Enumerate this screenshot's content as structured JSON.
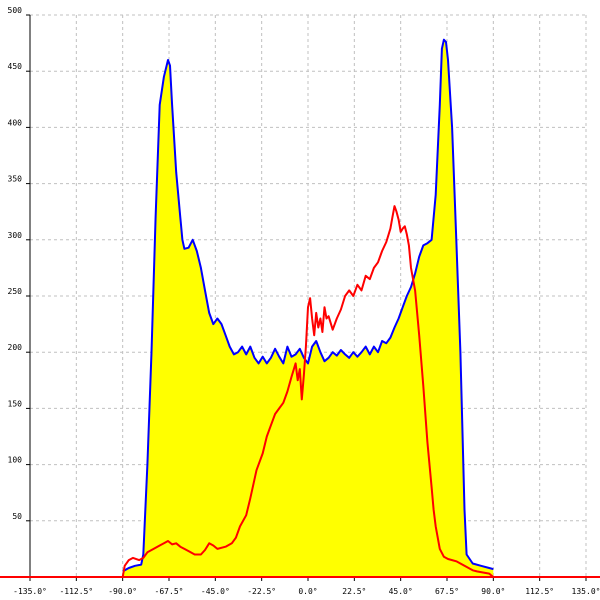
{
  "chart_data": {
    "type": "area",
    "title": "",
    "xlabel": "",
    "ylabel": "",
    "xlim": [
      -135,
      135
    ],
    "ylim": [
      0,
      500
    ],
    "x_ticks": [
      -135,
      -112.5,
      -90,
      -67.5,
      -45,
      -22.5,
      0,
      22.5,
      45,
      67.5,
      90,
      112.5,
      135
    ],
    "x_tick_labels": [
      "-135.0°",
      "-112.5°",
      "-90.0°",
      "-67.5°",
      "-45.0°",
      "-22.5°",
      "0.0°",
      "22.5°",
      "45.0°",
      "67.5°",
      "90.0°",
      "112.5°",
      "135.0°"
    ],
    "y_ticks": [
      50,
      100,
      150,
      200,
      250,
      300,
      350,
      400,
      450,
      500
    ],
    "y_tick_labels": [
      "50",
      "100",
      "150",
      "200",
      "250",
      "300",
      "350",
      "400",
      "450",
      "500"
    ],
    "grid": true,
    "legend": "none",
    "fill_color": "#ffff00",
    "series": [
      {
        "color": "#0000ff",
        "filled": true,
        "points": [
          [
            -90,
            5
          ],
          [
            -87,
            8
          ],
          [
            -84,
            10
          ],
          [
            -81,
            11
          ],
          [
            -80,
            20
          ],
          [
            -78,
            100
          ],
          [
            -76,
            200
          ],
          [
            -74,
            320
          ],
          [
            -72,
            420
          ],
          [
            -70,
            445
          ],
          [
            -68,
            460
          ],
          [
            -67,
            455
          ],
          [
            -66,
            420
          ],
          [
            -64,
            360
          ],
          [
            -62,
            320
          ],
          [
            -61,
            300
          ],
          [
            -60,
            292
          ],
          [
            -58,
            293
          ],
          [
            -56,
            300
          ],
          [
            -54,
            290
          ],
          [
            -52,
            275
          ],
          [
            -50,
            255
          ],
          [
            -48,
            235
          ],
          [
            -46,
            225
          ],
          [
            -44,
            230
          ],
          [
            -42,
            225
          ],
          [
            -40,
            215
          ],
          [
            -38,
            205
          ],
          [
            -36,
            198
          ],
          [
            -34,
            200
          ],
          [
            -32,
            205
          ],
          [
            -30,
            198
          ],
          [
            -28,
            205
          ],
          [
            -26,
            195
          ],
          [
            -24,
            190
          ],
          [
            -22,
            196
          ],
          [
            -20,
            190
          ],
          [
            -18,
            195
          ],
          [
            -16,
            203
          ],
          [
            -14,
            196
          ],
          [
            -12,
            190
          ],
          [
            -10,
            205
          ],
          [
            -8,
            196
          ],
          [
            -6,
            198
          ],
          [
            -4,
            203
          ],
          [
            -2,
            195
          ],
          [
            0,
            190
          ],
          [
            2,
            205
          ],
          [
            4,
            210
          ],
          [
            6,
            200
          ],
          [
            8,
            192
          ],
          [
            10,
            195
          ],
          [
            12,
            200
          ],
          [
            14,
            197
          ],
          [
            16,
            202
          ],
          [
            18,
            198
          ],
          [
            20,
            195
          ],
          [
            22,
            200
          ],
          [
            24,
            196
          ],
          [
            26,
            200
          ],
          [
            28,
            205
          ],
          [
            30,
            198
          ],
          [
            32,
            205
          ],
          [
            34,
            200
          ],
          [
            36,
            210
          ],
          [
            38,
            208
          ],
          [
            40,
            213
          ],
          [
            42,
            222
          ],
          [
            44,
            230
          ],
          [
            46,
            240
          ],
          [
            48,
            250
          ],
          [
            50,
            258
          ],
          [
            52,
            270
          ],
          [
            54,
            285
          ],
          [
            56,
            295
          ],
          [
            58,
            297
          ],
          [
            60,
            300
          ],
          [
            62,
            340
          ],
          [
            64,
            420
          ],
          [
            65,
            470
          ],
          [
            66,
            478
          ],
          [
            67,
            476
          ],
          [
            68,
            460
          ],
          [
            70,
            400
          ],
          [
            72,
            300
          ],
          [
            74,
            200
          ],
          [
            76,
            60
          ],
          [
            77,
            20
          ],
          [
            80,
            12
          ],
          [
            84,
            10
          ],
          [
            88,
            8
          ],
          [
            90,
            7
          ]
        ]
      },
      {
        "color": "#ff0000",
        "filled": false,
        "points": [
          [
            -135,
            0
          ],
          [
            -90,
            0
          ],
          [
            -89,
            10
          ],
          [
            -87,
            15
          ],
          [
            -85,
            17
          ],
          [
            -82,
            15
          ],
          [
            -80,
            17
          ],
          [
            -78,
            22
          ],
          [
            -75,
            25
          ],
          [
            -72,
            28
          ],
          [
            -70,
            30
          ],
          [
            -68,
            32
          ],
          [
            -66,
            29
          ],
          [
            -64,
            30
          ],
          [
            -62,
            27
          ],
          [
            -60,
            25
          ],
          [
            -58,
            23
          ],
          [
            -55,
            20
          ],
          [
            -52,
            20
          ],
          [
            -50,
            24
          ],
          [
            -48,
            30
          ],
          [
            -46,
            28
          ],
          [
            -44,
            25
          ],
          [
            -40,
            27
          ],
          [
            -37,
            30
          ],
          [
            -35,
            35
          ],
          [
            -33,
            45
          ],
          [
            -30,
            55
          ],
          [
            -28,
            70
          ],
          [
            -25,
            95
          ],
          [
            -22,
            110
          ],
          [
            -20,
            125
          ],
          [
            -18,
            135
          ],
          [
            -16,
            145
          ],
          [
            -14,
            150
          ],
          [
            -12,
            155
          ],
          [
            -10,
            165
          ],
          [
            -8,
            178
          ],
          [
            -6,
            190
          ],
          [
            -5,
            175
          ],
          [
            -4,
            185
          ],
          [
            -3,
            158
          ],
          [
            -2,
            180
          ],
          [
            -1,
            205
          ],
          [
            0,
            240
          ],
          [
            1,
            248
          ],
          [
            2,
            230
          ],
          [
            3,
            215
          ],
          [
            4,
            235
          ],
          [
            5,
            222
          ],
          [
            6,
            230
          ],
          [
            7,
            218
          ],
          [
            8,
            240
          ],
          [
            9,
            230
          ],
          [
            10,
            232
          ],
          [
            12,
            220
          ],
          [
            14,
            230
          ],
          [
            16,
            238
          ],
          [
            18,
            250
          ],
          [
            20,
            255
          ],
          [
            22,
            250
          ],
          [
            24,
            260
          ],
          [
            26,
            255
          ],
          [
            28,
            268
          ],
          [
            30,
            265
          ],
          [
            32,
            275
          ],
          [
            34,
            280
          ],
          [
            36,
            290
          ],
          [
            38,
            298
          ],
          [
            40,
            310
          ],
          [
            41,
            320
          ],
          [
            42,
            330
          ],
          [
            43,
            325
          ],
          [
            44,
            318
          ],
          [
            45,
            307
          ],
          [
            46,
            310
          ],
          [
            47,
            312
          ],
          [
            48,
            305
          ],
          [
            49,
            295
          ],
          [
            50,
            275
          ],
          [
            52,
            255
          ],
          [
            54,
            215
          ],
          [
            56,
            170
          ],
          [
            58,
            120
          ],
          [
            60,
            80
          ],
          [
            61,
            60
          ],
          [
            62,
            45
          ],
          [
            64,
            25
          ],
          [
            66,
            18
          ],
          [
            68,
            16
          ],
          [
            70,
            15
          ],
          [
            72,
            14
          ],
          [
            74,
            12
          ],
          [
            76,
            10
          ],
          [
            78,
            8
          ],
          [
            80,
            6
          ],
          [
            82,
            5
          ],
          [
            85,
            4
          ],
          [
            88,
            3
          ],
          [
            90,
            0
          ],
          [
            135,
            0
          ]
        ]
      }
    ]
  }
}
